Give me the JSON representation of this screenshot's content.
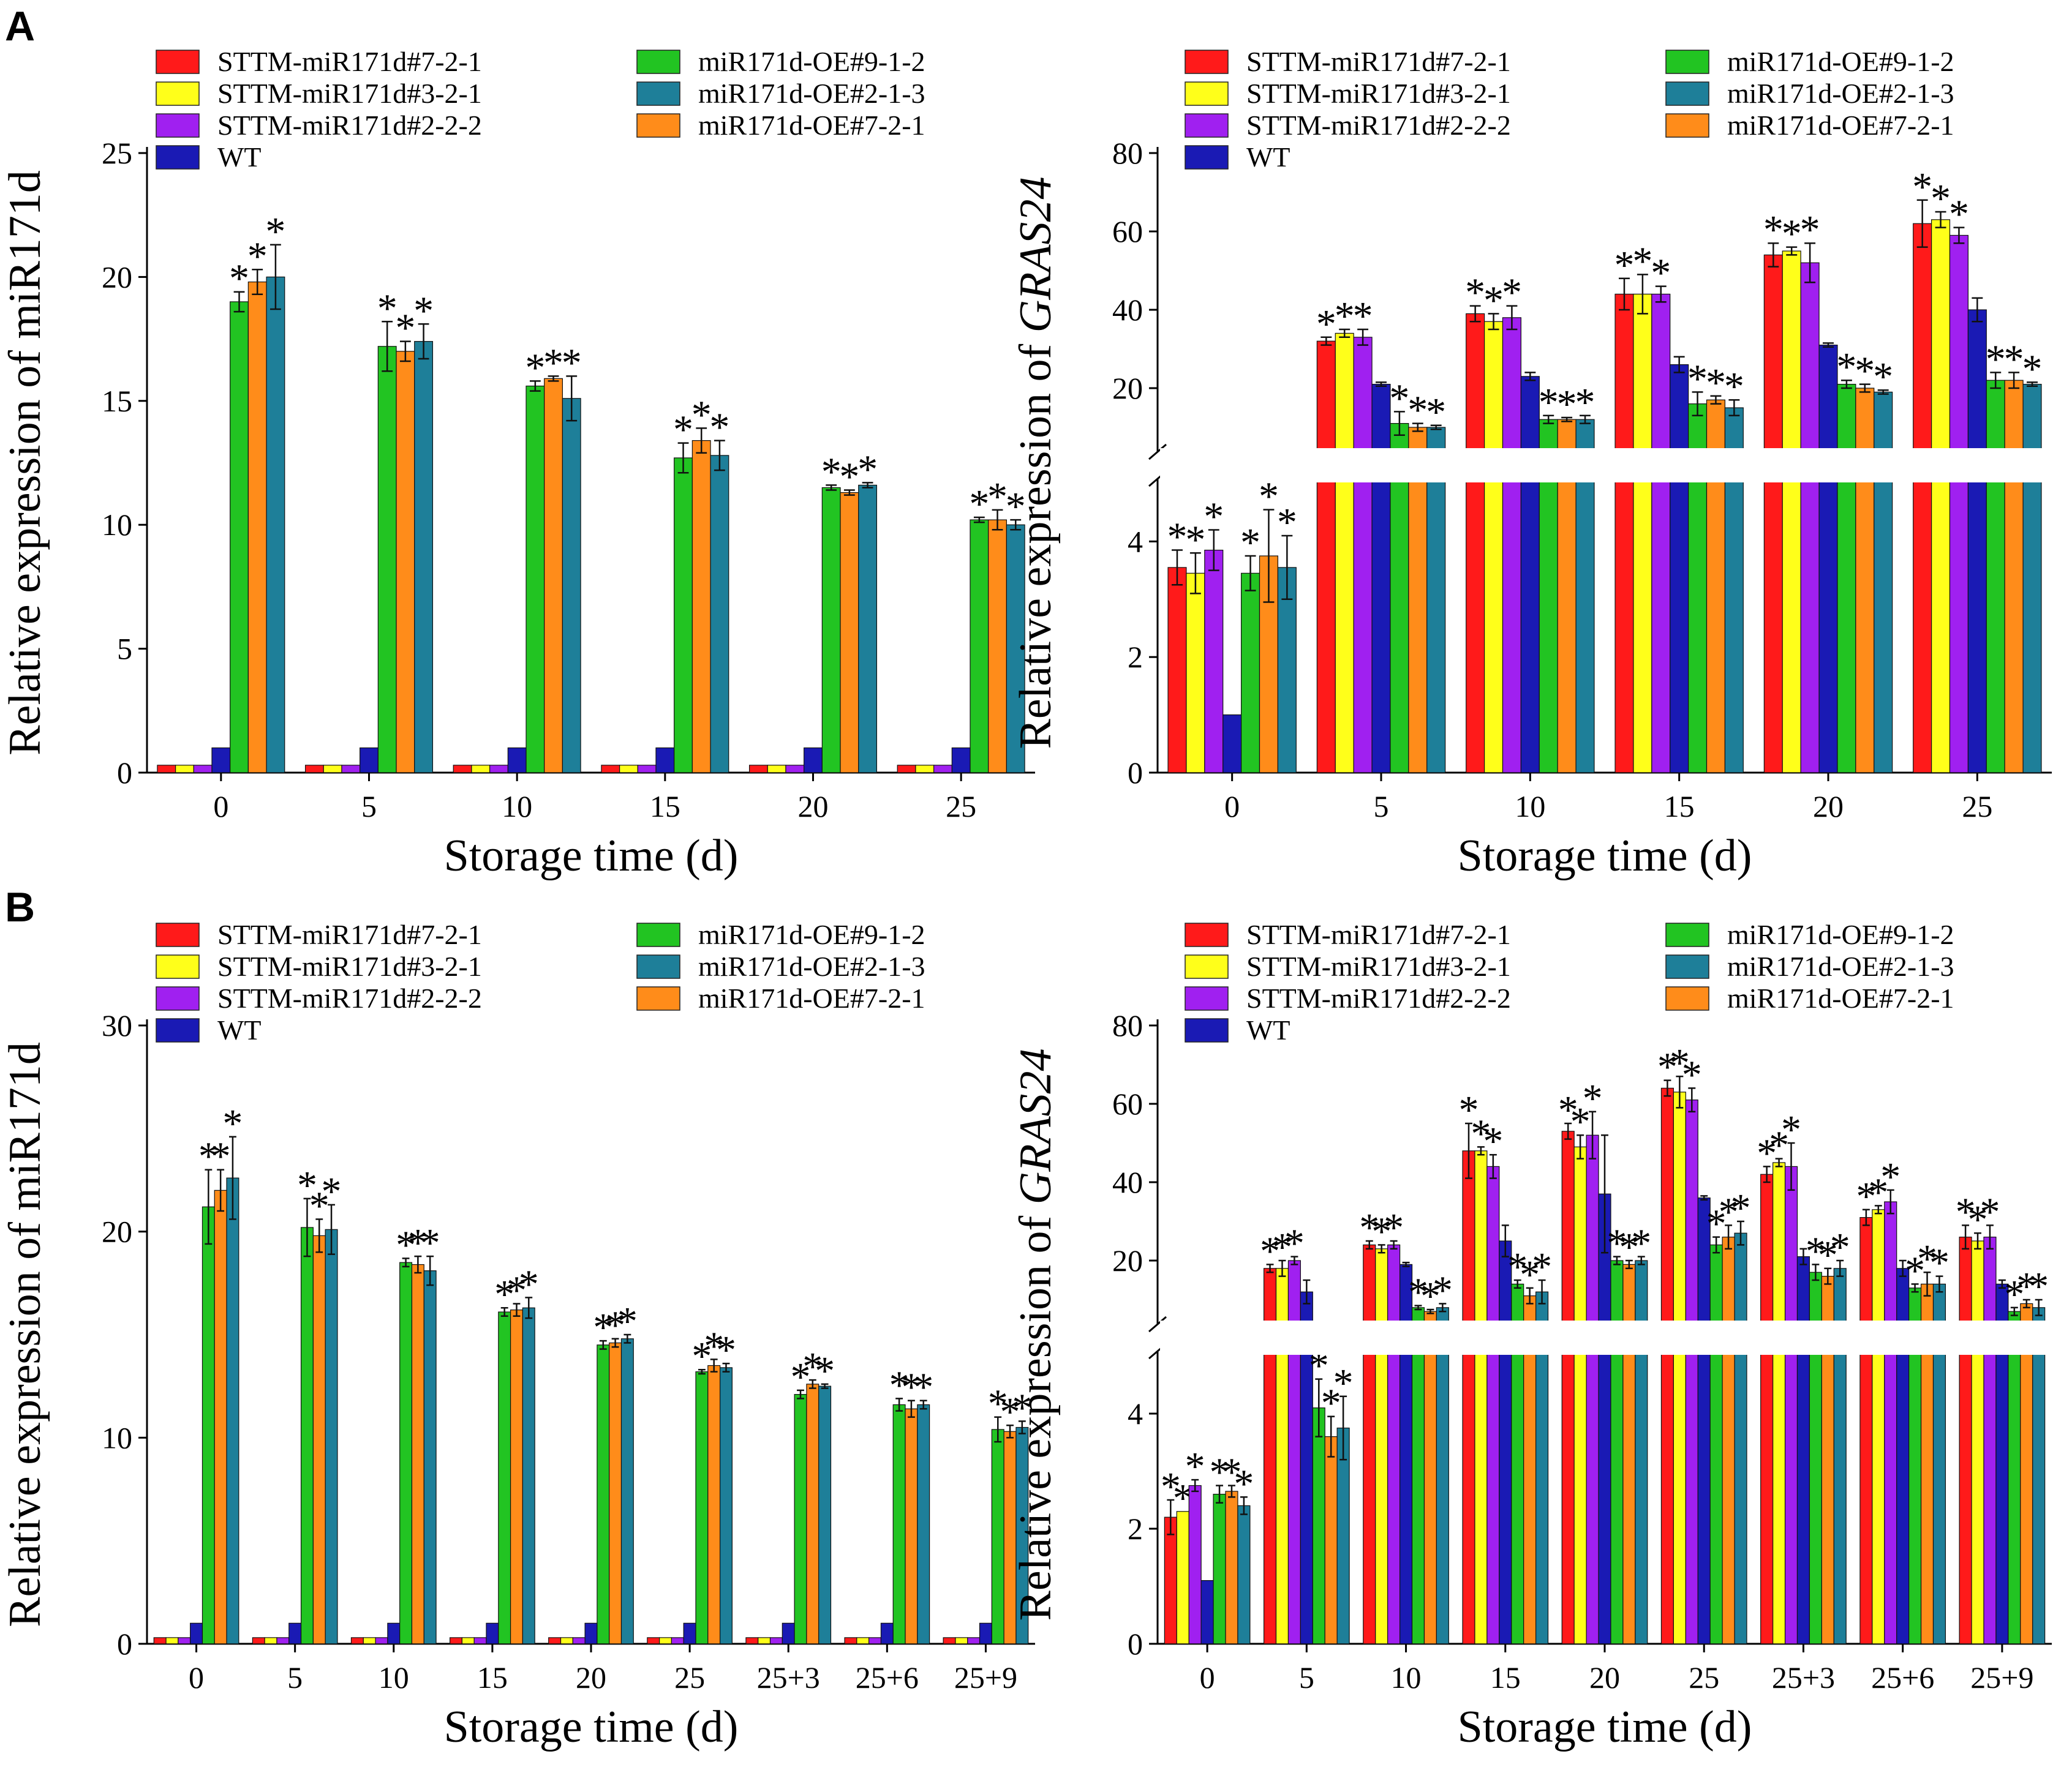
{
  "figure": {
    "panel_labels": [
      "A",
      "B"
    ]
  },
  "legend": [
    {
      "name": "STTM-miR171d#7-2-1",
      "color": "#ff1a1a"
    },
    {
      "name": "STTM-miR171d#3-2-1",
      "color": "#ffff1a"
    },
    {
      "name": "STTM-miR171d#2-2-2",
      "color": "#a020f0"
    },
    {
      "name": "WT",
      "color": "#1a1ab4"
    },
    {
      "name": "miR171d-OE#9-1-2",
      "color": "#22c422"
    },
    {
      "name": "miR171d-OE#2-1-3",
      "color": "#1e7f99"
    },
    {
      "name": "miR171d-OE#7-2-1",
      "color": "#ff8c1a"
    }
  ],
  "chart_data": [
    {
      "panel": "A",
      "type": "bar",
      "title": "",
      "xlabel": "Storage time (d)",
      "ylabel": "Relative expression of miR171d",
      "categories": [
        "0",
        "5",
        "10",
        "15",
        "20",
        "25"
      ],
      "ylim": [
        0,
        25
      ],
      "yticks": [
        0,
        5,
        10,
        15,
        20,
        25
      ],
      "annotation": "*",
      "series": [
        {
          "name": "STTM-miR171d#7-2-1",
          "values": [
            0.3,
            0.3,
            0.3,
            0.3,
            0.3,
            0.3
          ]
        },
        {
          "name": "STTM-miR171d#3-2-1",
          "values": [
            0.3,
            0.3,
            0.3,
            0.3,
            0.3,
            0.3
          ]
        },
        {
          "name": "STTM-miR171d#2-2-2",
          "values": [
            0.3,
            0.3,
            0.3,
            0.3,
            0.3,
            0.3
          ]
        },
        {
          "name": "WT",
          "values": [
            1.0,
            1.0,
            1.0,
            1.0,
            1.0,
            1.0
          ]
        },
        {
          "name": "miR171d-OE#9-1-2",
          "values": [
            19.0,
            17.2,
            15.6,
            12.7,
            11.5,
            10.2
          ]
        },
        {
          "name": "miR171d-OE#7-2-1",
          "values": [
            19.8,
            17.0,
            15.9,
            13.4,
            11.3,
            10.2
          ]
        },
        {
          "name": "miR171d-OE#2-1-3",
          "values": [
            20.0,
            17.4,
            15.1,
            12.8,
            11.6,
            10.0
          ]
        }
      ],
      "errors": [
        [
          0.05,
          0.05,
          0.05,
          0.05,
          0.05,
          0.05
        ],
        [
          0.05,
          0.05,
          0.05,
          0.05,
          0.05,
          0.05
        ],
        [
          0.05,
          0.05,
          0.05,
          0.05,
          0.05,
          0.05
        ],
        [
          0.05,
          0.05,
          0.05,
          0.05,
          0.05,
          0.05
        ],
        [
          0.4,
          1.0,
          0.2,
          0.6,
          0.1,
          0.1
        ],
        [
          0.5,
          0.4,
          0.1,
          0.5,
          0.1,
          0.4
        ],
        [
          1.3,
          0.7,
          0.9,
          0.6,
          0.1,
          0.2
        ]
      ],
      "star_series": [
        4,
        5,
        6
      ]
    },
    {
      "panel": "A",
      "type": "bar",
      "title": "",
      "xlabel": "Storage time (d)",
      "ylabel": "Relative expression of GRAS24",
      "ylabel_plain": "Relative expression of ",
      "ylabel_italic": "GRAS24",
      "categories": [
        "0",
        "5",
        "10",
        "15",
        "20",
        "25"
      ],
      "broken_axis": {
        "lower": [
          0,
          5
        ],
        "upper": [
          5,
          80
        ]
      },
      "yticks_lower": [
        0,
        2,
        4
      ],
      "yticks_upper": [
        20,
        40,
        60,
        80
      ],
      "annotation": "*",
      "series": [
        {
          "name": "STTM-miR171d#7-2-1",
          "values": [
            3.55,
            32,
            39,
            44,
            54,
            62
          ]
        },
        {
          "name": "STTM-miR171d#3-2-1",
          "values": [
            3.45,
            34,
            37,
            44,
            55,
            63
          ]
        },
        {
          "name": "STTM-miR171d#2-2-2",
          "values": [
            3.85,
            33,
            38,
            44,
            52,
            59
          ]
        },
        {
          "name": "WT",
          "values": [
            1.0,
            21,
            23,
            26,
            31,
            40
          ]
        },
        {
          "name": "miR171d-OE#9-1-2",
          "values": [
            3.45,
            11,
            12,
            16,
            21,
            22
          ]
        },
        {
          "name": "miR171d-OE#7-2-1",
          "values": [
            3.75,
            10,
            12,
            17,
            20,
            22
          ]
        },
        {
          "name": "miR171d-OE#2-1-3",
          "values": [
            3.55,
            10,
            12,
            15,
            19,
            21
          ]
        }
      ],
      "errors": [
        [
          0.3,
          1,
          2,
          4,
          3,
          6
        ],
        [
          0.35,
          1,
          2,
          5,
          1,
          2
        ],
        [
          0.35,
          2,
          3,
          2,
          5,
          2
        ],
        [
          0.05,
          0.5,
          1,
          2,
          0.5,
          3
        ],
        [
          0.3,
          3,
          1,
          3,
          1,
          2
        ],
        [
          0.8,
          1,
          0.5,
          1,
          1,
          2
        ],
        [
          0.55,
          0.5,
          1,
          2,
          0.5,
          0.5
        ]
      ],
      "star_series": [
        0,
        1,
        2,
        4,
        5,
        6
      ]
    },
    {
      "panel": "B",
      "type": "bar",
      "title": "",
      "xlabel": "Storage time (d)",
      "ylabel": "Relative expression of miR171d",
      "categories": [
        "0",
        "5",
        "10",
        "15",
        "20",
        "25",
        "25+3",
        "25+6",
        "25+9"
      ],
      "ylim": [
        0,
        30
      ],
      "yticks": [
        0,
        10,
        20,
        30
      ],
      "annotation": "*",
      "series": [
        {
          "name": "STTM-miR171d#7-2-1",
          "values": [
            0.3,
            0.3,
            0.3,
            0.3,
            0.3,
            0.3,
            0.3,
            0.3,
            0.3
          ]
        },
        {
          "name": "STTM-miR171d#3-2-1",
          "values": [
            0.3,
            0.3,
            0.3,
            0.3,
            0.3,
            0.3,
            0.3,
            0.3,
            0.3
          ]
        },
        {
          "name": "STTM-miR171d#2-2-2",
          "values": [
            0.3,
            0.3,
            0.3,
            0.3,
            0.3,
            0.3,
            0.3,
            0.3,
            0.3
          ]
        },
        {
          "name": "WT",
          "values": [
            1.0,
            1.0,
            1.0,
            1.0,
            1.0,
            1.0,
            1.0,
            1.0,
            1.0
          ]
        },
        {
          "name": "miR171d-OE#9-1-2",
          "values": [
            21.2,
            20.2,
            18.5,
            16.1,
            14.5,
            13.2,
            12.1,
            11.6,
            10.4
          ]
        },
        {
          "name": "miR171d-OE#7-2-1",
          "values": [
            22.0,
            19.8,
            18.4,
            16.2,
            14.6,
            13.5,
            12.6,
            11.4,
            10.3
          ]
        },
        {
          "name": "miR171d-OE#2-1-3",
          "values": [
            22.6,
            20.1,
            18.1,
            16.3,
            14.8,
            13.4,
            12.5,
            11.6,
            10.5
          ]
        }
      ],
      "errors": [
        [
          0.05,
          0.05,
          0.05,
          0.05,
          0.05,
          0.05,
          0.05,
          0.05,
          0.05
        ],
        [
          0.05,
          0.05,
          0.05,
          0.05,
          0.05,
          0.05,
          0.05,
          0.05,
          0.05
        ],
        [
          0.05,
          0.05,
          0.05,
          0.05,
          0.05,
          0.05,
          0.05,
          0.05,
          0.05
        ],
        [
          0.05,
          0.05,
          0.05,
          0.05,
          0.05,
          0.05,
          0.05,
          0.05,
          0.05
        ],
        [
          1.8,
          1.4,
          0.2,
          0.2,
          0.2,
          0.1,
          0.2,
          0.3,
          0.6
        ],
        [
          1.0,
          0.8,
          0.4,
          0.3,
          0.2,
          0.3,
          0.2,
          0.4,
          0.3
        ],
        [
          2.0,
          1.2,
          0.7,
          0.5,
          0.2,
          0.2,
          0.1,
          0.2,
          0.3
        ]
      ],
      "star_series": [
        4,
        5,
        6
      ]
    },
    {
      "panel": "B",
      "type": "bar",
      "title": "",
      "xlabel": "Storage time (d)",
      "ylabel": "Relative expression of GRAS24",
      "ylabel_plain": "Relative expression of ",
      "ylabel_italic": "GRAS24",
      "categories": [
        "0",
        "5",
        "10",
        "15",
        "20",
        "25",
        "25+3",
        "25+6",
        "25+9"
      ],
      "broken_axis": {
        "lower": [
          0,
          5
        ],
        "upper": [
          5,
          80
        ]
      },
      "yticks_lower": [
        0,
        2,
        4
      ],
      "yticks_upper": [
        20,
        40,
        60,
        80
      ],
      "annotation": "*",
      "series": [
        {
          "name": "STTM-miR171d#7-2-1",
          "values": [
            2.2,
            18,
            24,
            48,
            53,
            64,
            42,
            31,
            26
          ]
        },
        {
          "name": "STTM-miR171d#3-2-1",
          "values": [
            2.3,
            18,
            23,
            48,
            49,
            63,
            45,
            33,
            25
          ]
        },
        {
          "name": "STTM-miR171d#2-2-2",
          "values": [
            2.75,
            20,
            24,
            44,
            52,
            61,
            44,
            35,
            26
          ]
        },
        {
          "name": "WT",
          "values": [
            1.1,
            12,
            19,
            25,
            37,
            36,
            21,
            18,
            14
          ]
        },
        {
          "name": "miR171d-OE#9-1-2",
          "values": [
            2.6,
            4.1,
            8,
            14,
            20,
            24,
            17,
            13,
            7
          ]
        },
        {
          "name": "miR171d-OE#7-2-1",
          "values": [
            2.65,
            3.6,
            7,
            11,
            19,
            26,
            16,
            14,
            9
          ]
        },
        {
          "name": "miR171d-OE#2-1-3",
          "values": [
            2.4,
            3.75,
            8,
            12,
            20,
            27,
            18,
            14,
            8
          ]
        }
      ],
      "errors": [
        [
          0.3,
          1,
          1,
          7,
          2,
          2,
          2,
          2,
          3
        ],
        [
          0.05,
          2,
          1,
          1,
          3,
          4,
          1,
          1,
          2
        ],
        [
          0.1,
          1,
          1,
          3,
          6,
          3,
          6,
          3,
          3
        ],
        [
          0.05,
          3,
          0.5,
          4,
          15,
          0.5,
          2,
          2,
          1
        ],
        [
          0.15,
          0.5,
          0.5,
          1,
          1,
          2,
          2,
          1,
          1
        ],
        [
          0.1,
          0.35,
          0.5,
          2,
          1,
          3,
          2,
          3,
          1
        ],
        [
          0.15,
          0.55,
          1,
          3,
          1,
          3,
          2,
          2,
          2
        ]
      ],
      "star_series": [
        0,
        1,
        2,
        4,
        5,
        6
      ]
    }
  ]
}
